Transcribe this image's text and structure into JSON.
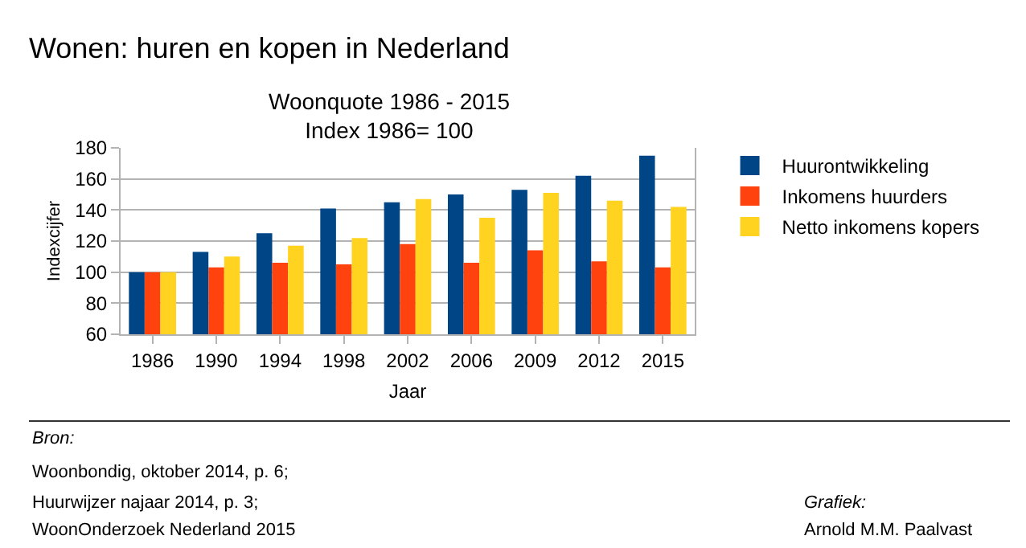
{
  "chart_data": {
    "type": "bar",
    "title": "Wonen: huren en kopen in Nederland",
    "subtitle": "Woonquote 1986 - 2015\nIndex 1986= 100",
    "xlabel": "Jaar",
    "ylabel": "Indexcijfer",
    "categories": [
      "1986",
      "1990",
      "1994",
      "1998",
      "2002",
      "2006",
      "2009",
      "2012",
      "2015"
    ],
    "series": [
      {
        "name": "Huurontwikkeling",
        "color": "#004586",
        "values": [
          100,
          113,
          125,
          141,
          145,
          150,
          153,
          162,
          175
        ]
      },
      {
        "name": "Inkomens huurders",
        "color": "#ff420e",
        "values": [
          100,
          103,
          106,
          105,
          118,
          106,
          114,
          107,
          103
        ]
      },
      {
        "name": "Netto inkomens kopers",
        "color": "#ffd320",
        "values": [
          100,
          110,
          117,
          122,
          147,
          135,
          151,
          146,
          142
        ]
      }
    ],
    "ylim": [
      60,
      180
    ],
    "yticks": [
      60,
      80,
      100,
      120,
      140,
      160,
      180
    ],
    "grid": "y",
    "legend": "right",
    "annotations": [
      "Bron:",
      "Woonbondig, oktober 2014, p. 6;",
      "Huurwijzer najaar 2014, p. 3;",
      "WoonOnderzoek Nederland 2015",
      "Grafiek:",
      "Arnold M.M. Paalvast"
    ]
  }
}
